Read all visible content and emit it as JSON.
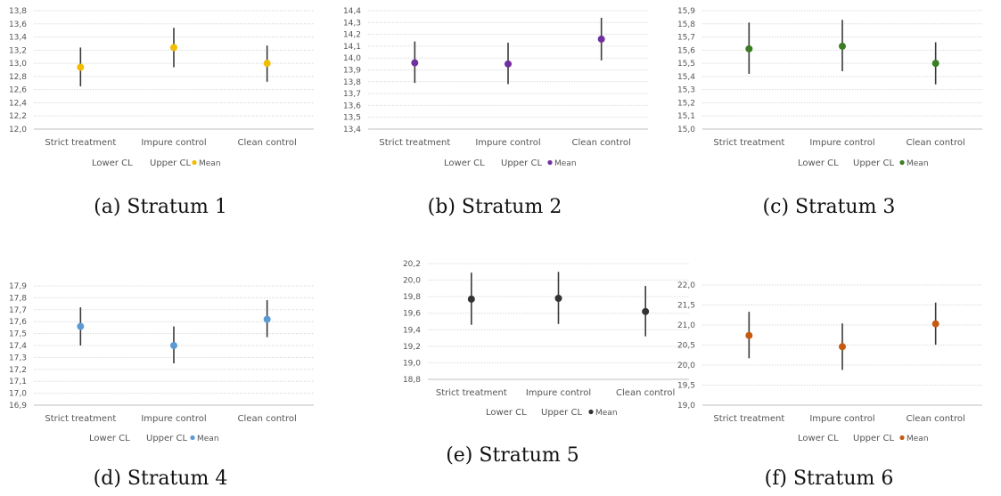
{
  "chart_data": [
    {
      "type": "scatter",
      "caption": "(a) Stratum 1",
      "categories": [
        "Strict treatment",
        "Impure control",
        "Clean control"
      ],
      "ylim": [
        12.0,
        13.8
      ],
      "ytick_step": 0.2,
      "ytick_labels": [
        "12,0",
        "12,2",
        "12,4",
        "12,6",
        "12,8",
        "13,0",
        "13,2",
        "13,4",
        "13,6",
        "13,8"
      ],
      "series": [
        {
          "name": "Lower CL",
          "values": [
            12.65,
            12.94,
            12.72
          ]
        },
        {
          "name": "Upper CL",
          "values": [
            13.24,
            13.54,
            13.27
          ]
        },
        {
          "name": "Mean",
          "values": [
            12.94,
            13.24,
            13.0
          ]
        }
      ],
      "legend": [
        "Lower CL",
        "Upper CL",
        "Mean"
      ],
      "mean_color": "#f2bd00",
      "grid": true
    },
    {
      "type": "scatter",
      "caption": "(b) Stratum 2",
      "categories": [
        "Strict treatment",
        "Impure control",
        "Clean control"
      ],
      "ylim": [
        13.4,
        14.4
      ],
      "ytick_step": 0.1,
      "ytick_labels": [
        "13,4",
        "13,5",
        "13,6",
        "13,7",
        "13,8",
        "13,9",
        "14,0",
        "14,1",
        "14,2",
        "14,3",
        "14,4"
      ],
      "series": [
        {
          "name": "Lower CL",
          "values": [
            13.79,
            13.78,
            13.98
          ]
        },
        {
          "name": "Upper CL",
          "values": [
            14.14,
            14.13,
            14.34
          ]
        },
        {
          "name": "Mean",
          "values": [
            13.96,
            13.95,
            14.16
          ]
        }
      ],
      "legend": [
        "Lower CL",
        "Upper CL",
        "Mean"
      ],
      "mean_color": "#7030a0",
      "grid": true
    },
    {
      "type": "scatter",
      "caption": "(c) Stratum 3",
      "categories": [
        "Strict treatment",
        "Impure control",
        "Clean control"
      ],
      "ylim": [
        15.0,
        15.9
      ],
      "ytick_step": 0.1,
      "ytick_labels": [
        "15,0",
        "15,1",
        "15,2",
        "15,3",
        "15,4",
        "15,5",
        "15,6",
        "15,7",
        "15,8",
        "15,9"
      ],
      "series": [
        {
          "name": "Lower CL",
          "values": [
            15.42,
            15.44,
            15.34
          ]
        },
        {
          "name": "Upper CL",
          "values": [
            15.81,
            15.83,
            15.66
          ]
        },
        {
          "name": "Mean",
          "values": [
            15.61,
            15.63,
            15.5
          ]
        }
      ],
      "legend": [
        "Lower CL",
        "Upper CL",
        "Mean"
      ],
      "mean_color": "#3a7d22",
      "grid": true
    },
    {
      "type": "scatter",
      "caption": "(d) Stratum 4",
      "categories": [
        "Strict treatment",
        "Impure control",
        "Clean control"
      ],
      "ylim": [
        16.9,
        17.9
      ],
      "ytick_step": 0.1,
      "ytick_labels": [
        "16,9",
        "17,0",
        "17,1",
        "17,2",
        "17,3",
        "17,4",
        "17,5",
        "17,6",
        "17,7",
        "17,8",
        "17,9"
      ],
      "series": [
        {
          "name": "Lower CL",
          "values": [
            17.4,
            17.25,
            17.47
          ]
        },
        {
          "name": "Upper CL",
          "values": [
            17.72,
            17.56,
            17.78
          ]
        },
        {
          "name": "Mean",
          "values": [
            17.56,
            17.4,
            17.62
          ]
        }
      ],
      "legend": [
        "Lower CL",
        "Upper CL",
        "Mean"
      ],
      "mean_color": "#5b9bd5",
      "grid": true
    },
    {
      "type": "scatter",
      "caption": "(e) Stratum 5",
      "categories": [
        "Strict treatment",
        "Impure control",
        "Clean control"
      ],
      "ylim": [
        18.8,
        20.2
      ],
      "ytick_step": 0.2,
      "ytick_labels": [
        "18,8",
        "19,0",
        "19,2",
        "19,4",
        "19,6",
        "19,8",
        "20,0",
        "20,2"
      ],
      "series": [
        {
          "name": "Lower CL",
          "values": [
            19.46,
            19.47,
            19.32
          ]
        },
        {
          "name": "Upper CL",
          "values": [
            20.09,
            20.1,
            19.93
          ]
        },
        {
          "name": "Mean",
          "values": [
            19.77,
            19.78,
            19.62
          ]
        }
      ],
      "legend": [
        "Lower CL",
        "Upper CL",
        "Mean"
      ],
      "mean_color": "#333333",
      "grid": true
    },
    {
      "type": "scatter",
      "caption": "(f) Stratum 6",
      "categories": [
        "Strict treatment",
        "Impure control",
        "Clean control"
      ],
      "ylim": [
        19.0,
        22.0
      ],
      "ytick_step": 0.5,
      "ytick_labels": [
        "19,0",
        "19,5",
        "20,0",
        "20,5",
        "21,0",
        "21,5",
        "22,0"
      ],
      "series": [
        {
          "name": "Lower CL",
          "values": [
            20.17,
            19.88,
            20.51
          ]
        },
        {
          "name": "Upper CL",
          "values": [
            21.33,
            21.04,
            21.56
          ]
        },
        {
          "name": "Mean",
          "values": [
            20.74,
            20.46,
            21.03
          ]
        }
      ],
      "legend": [
        "Lower CL",
        "Upper CL",
        "Mean"
      ],
      "mean_color": "#c55a11",
      "grid": true
    }
  ]
}
